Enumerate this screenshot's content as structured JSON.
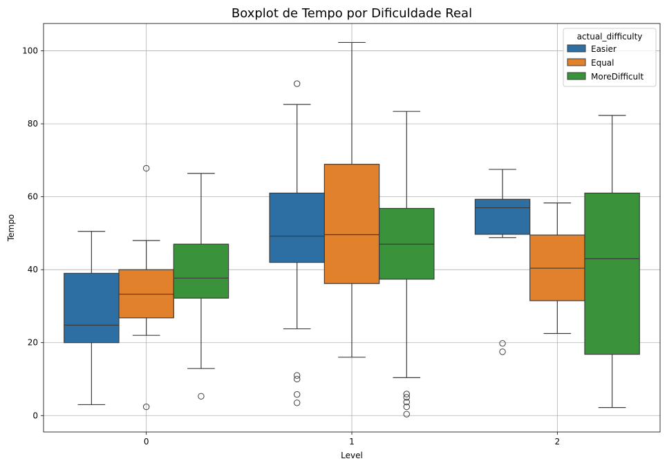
{
  "chart_data": {
    "type": "boxplot",
    "title": "Boxplot de Tempo por Dificuldade Real",
    "xlabel": "Level",
    "ylabel": "Tempo",
    "categories": [
      "0",
      "1",
      "2"
    ],
    "ylim": [
      -4.5,
      107.5
    ],
    "yticks": [
      0,
      20,
      40,
      60,
      80,
      100
    ],
    "grid": true,
    "legend": {
      "title": "actual_difficulty",
      "position": "top-right"
    },
    "series": [
      {
        "name": "Easier",
        "color": "#2e6fa3",
        "boxes": [
          {
            "whisker_low": 3,
            "q1": 20,
            "median": 24.8,
            "q3": 39,
            "whisker_high": 50.5,
            "outliers": []
          },
          {
            "whisker_low": 23.8,
            "q1": 42,
            "median": 49.2,
            "q3": 61,
            "whisker_high": 85.3,
            "outliers": [
              91,
              11,
              10,
              5.8,
              3.5
            ]
          },
          {
            "whisker_low": 48.8,
            "q1": 49.7,
            "median": 57,
            "q3": 59.3,
            "whisker_high": 67.5,
            "outliers": [
              19.8,
              17.5
            ]
          }
        ]
      },
      {
        "name": "Equal",
        "color": "#e1812c",
        "boxes": [
          {
            "whisker_low": 22,
            "q1": 26.8,
            "median": 33.3,
            "q3": 40,
            "whisker_high": 48,
            "outliers": [
              67.8,
              2.4
            ]
          },
          {
            "whisker_low": 16,
            "q1": 36.2,
            "median": 49.6,
            "q3": 68.9,
            "whisker_high": 102.3,
            "outliers": []
          },
          {
            "whisker_low": 22.5,
            "q1": 31.5,
            "median": 40.4,
            "q3": 49.5,
            "whisker_high": 58.3,
            "outliers": []
          }
        ]
      },
      {
        "name": "MoreDifficult",
        "color": "#3a923a",
        "boxes": [
          {
            "whisker_low": 12.9,
            "q1": 32.2,
            "median": 37.7,
            "q3": 47,
            "whisker_high": 66.4,
            "outliers": [
              5.3
            ]
          },
          {
            "whisker_low": 10.4,
            "q1": 37.4,
            "median": 47,
            "q3": 56.8,
            "whisker_high": 83.4,
            "outliers": [
              5.9,
              5,
              3.7,
              2.4,
              0.4
            ]
          },
          {
            "whisker_low": 2.2,
            "q1": 16.8,
            "median": 43,
            "q3": 61,
            "whisker_high": 82.3,
            "outliers": []
          }
        ]
      }
    ]
  }
}
